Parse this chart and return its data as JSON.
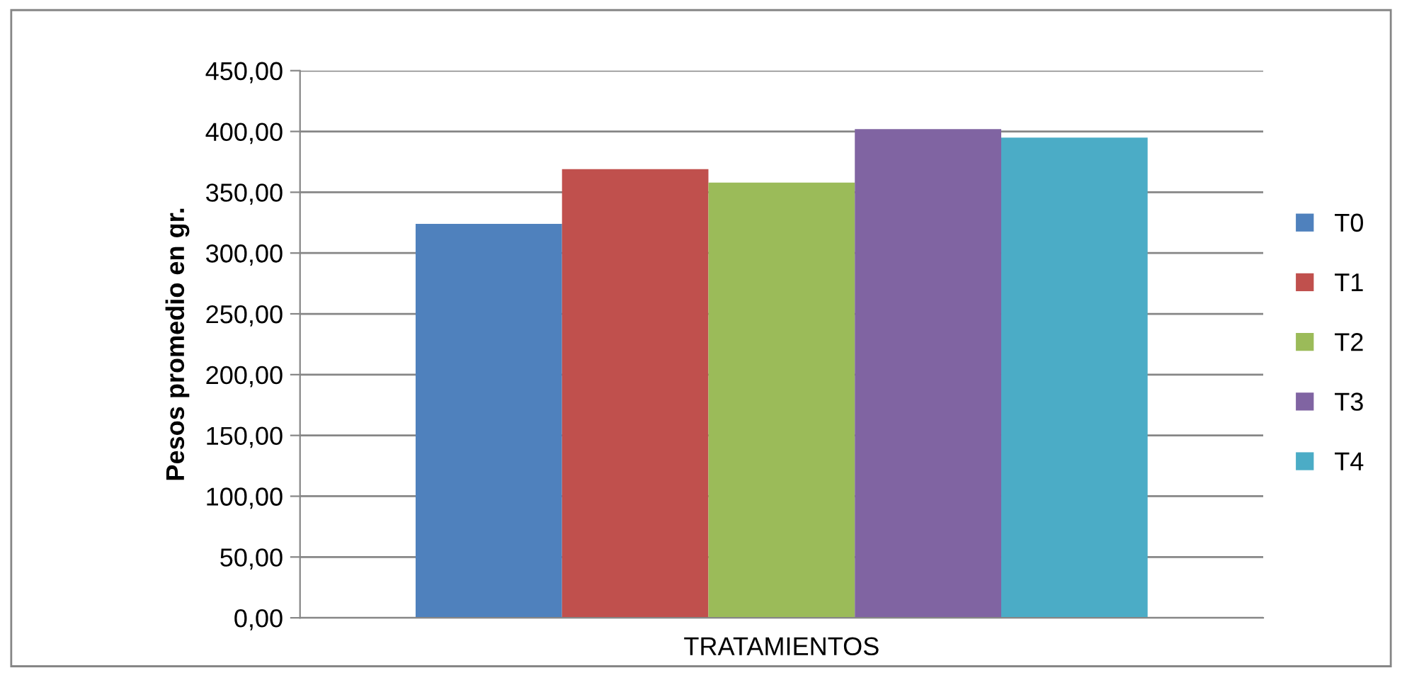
{
  "chart_data": {
    "type": "bar",
    "xlabel": "TRATAMIENTOS",
    "ylabel": "Pesos promedio en gr.",
    "categories": [
      null
    ],
    "series": [
      {
        "name": "T0",
        "color": "#4f81bd",
        "values": [
          324
        ]
      },
      {
        "name": "T1",
        "color": "#c0504d",
        "values": [
          369
        ]
      },
      {
        "name": "T2",
        "color": "#9bbb59",
        "values": [
          358
        ]
      },
      {
        "name": "T3",
        "color": "#8064a2",
        "values": [
          402
        ]
      },
      {
        "name": "T4",
        "color": "#4bacc6",
        "values": [
          395
        ]
      }
    ],
    "ylim": [
      0,
      450
    ],
    "yticks": [
      {
        "value": 0,
        "label": "0,00"
      },
      {
        "value": 50,
        "label": "50,00"
      },
      {
        "value": 100,
        "label": "100,00"
      },
      {
        "value": 150,
        "label": "150,00"
      },
      {
        "value": 200,
        "label": "200,00"
      },
      {
        "value": 250,
        "label": "250,00"
      },
      {
        "value": 300,
        "label": "300,00"
      },
      {
        "value": 350,
        "label": "350,00"
      },
      {
        "value": 400,
        "label": "400,00"
      },
      {
        "value": 450,
        "label": "450,00"
      }
    ],
    "grid": "y",
    "legend": "right"
  }
}
